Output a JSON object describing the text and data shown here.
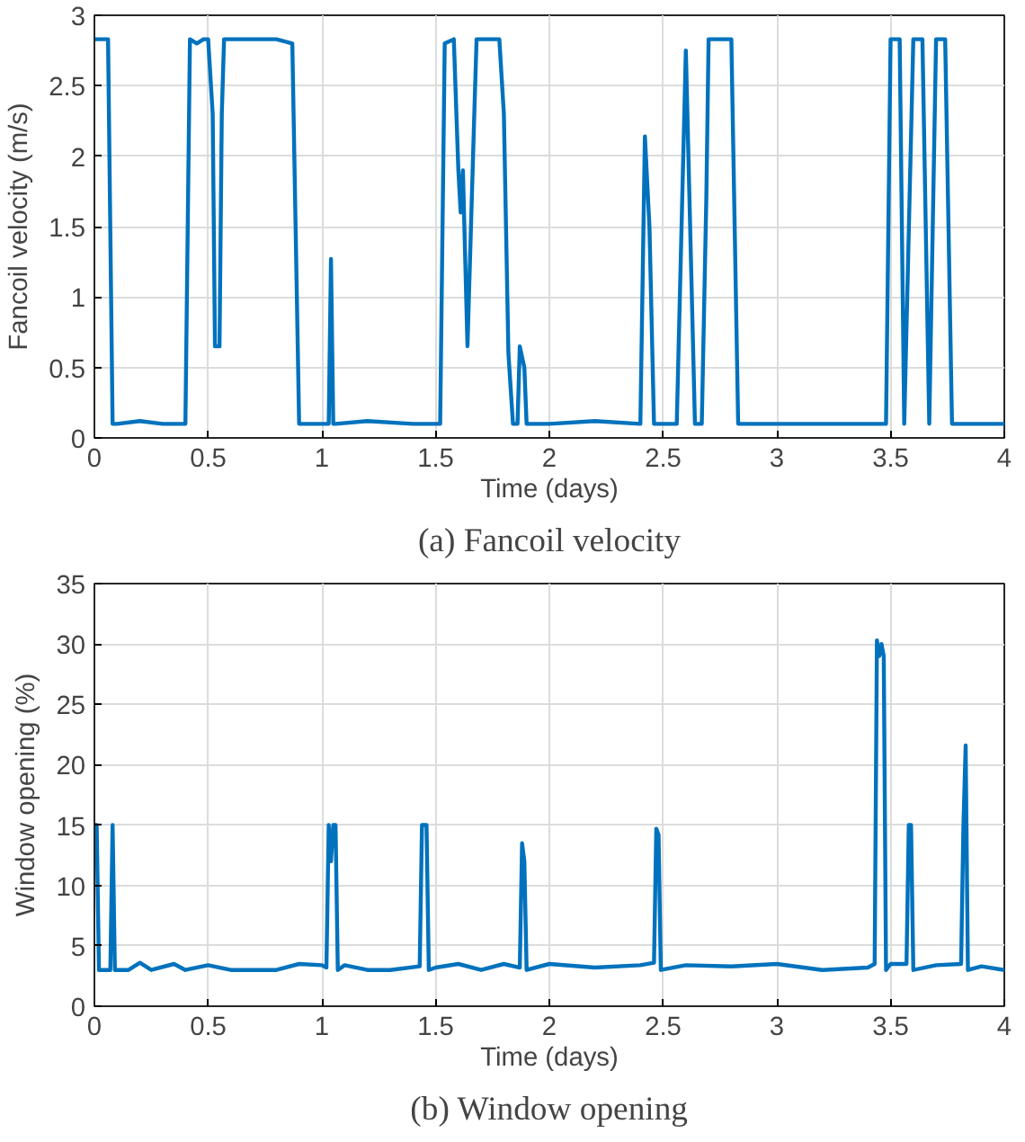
{
  "chart_data": [
    {
      "type": "line",
      "xlabel": "Time (days)",
      "ylabel": "Fancoil velocity (m/s)",
      "annotations": [
        "(a) Fancoil velocity"
      ],
      "xlim": [
        0,
        4
      ],
      "ylim": [
        0,
        3
      ],
      "xticks": [
        0,
        0.5,
        1,
        1.5,
        2,
        2.5,
        3,
        3.5,
        4
      ],
      "yticks": [
        0,
        0.5,
        1,
        1.5,
        2,
        2.5,
        3
      ],
      "grid": true,
      "line_style": "solid",
      "marker": "none",
      "series": [
        {
          "color": "#0072bd",
          "x": [
            0,
            0.06,
            0.08,
            0.1,
            0.2,
            0.3,
            0.4,
            0.42,
            0.45,
            0.48,
            0.5,
            0.52,
            0.53,
            0.55,
            0.56,
            0.57,
            0.6,
            0.7,
            0.8,
            0.87,
            0.9,
            0.95,
            1.03,
            1.04,
            1.05,
            1.06,
            1.2,
            1.4,
            1.52,
            1.54,
            1.58,
            1.6,
            1.61,
            1.62,
            1.64,
            1.67,
            1.68,
            1.78,
            1.8,
            1.82,
            1.84,
            1.86,
            1.87,
            1.89,
            1.9,
            2.0,
            2.2,
            2.4,
            2.42,
            2.44,
            2.46,
            2.56,
            2.6,
            2.64,
            2.67,
            2.69,
            2.7,
            2.8,
            2.83,
            3.0,
            3.3,
            3.48,
            3.5,
            3.54,
            3.56,
            3.6,
            3.64,
            3.67,
            3.7,
            3.74,
            3.77,
            3.9,
            4
          ],
          "values": [
            2.83,
            2.83,
            0.1,
            0.1,
            0.12,
            0.1,
            0.1,
            2.83,
            2.8,
            2.83,
            2.83,
            2.3,
            0.65,
            0.65,
            2.3,
            2.83,
            2.83,
            2.83,
            2.83,
            2.8,
            0.1,
            0.1,
            0.1,
            1.27,
            0.1,
            0.1,
            0.12,
            0.1,
            0.1,
            2.8,
            2.83,
            1.9,
            1.6,
            1.9,
            0.65,
            2.3,
            2.83,
            2.83,
            2.3,
            0.6,
            0.1,
            0.1,
            0.65,
            0.5,
            0.1,
            0.1,
            0.12,
            0.1,
            2.14,
            1.5,
            0.1,
            0.1,
            2.75,
            0.1,
            0.1,
            1.7,
            2.83,
            2.83,
            0.1,
            0.1,
            0.1,
            0.1,
            2.83,
            2.83,
            0.1,
            2.83,
            2.83,
            0.1,
            2.83,
            2.83,
            0.1,
            0.1,
            0.1
          ]
        }
      ]
    },
    {
      "type": "line",
      "xlabel": "Time (days)",
      "ylabel": "Window opening (%)",
      "annotations": [
        "(b) Window opening"
      ],
      "xlim": [
        0,
        4
      ],
      "ylim": [
        0,
        35
      ],
      "xticks": [
        0,
        0.5,
        1,
        1.5,
        2,
        2.5,
        3,
        3.5,
        4
      ],
      "yticks": [
        0,
        5,
        10,
        15,
        20,
        25,
        30,
        35
      ],
      "grid": true,
      "line_style": "solid",
      "marker": "none",
      "series": [
        {
          "color": "#0072bd",
          "x": [
            0,
            0.01,
            0.02,
            0.07,
            0.08,
            0.09,
            0.15,
            0.2,
            0.25,
            0.35,
            0.4,
            0.5,
            0.6,
            0.8,
            0.9,
            1.0,
            1.02,
            1.03,
            1.04,
            1.05,
            1.06,
            1.07,
            1.1,
            1.2,
            1.3,
            1.43,
            1.44,
            1.46,
            1.47,
            1.5,
            1.6,
            1.7,
            1.8,
            1.87,
            1.88,
            1.89,
            1.9,
            2.0,
            2.2,
            2.4,
            2.46,
            2.47,
            2.48,
            2.49,
            2.6,
            2.8,
            3.0,
            3.2,
            3.4,
            3.43,
            3.44,
            3.45,
            3.46,
            3.47,
            3.48,
            3.5,
            3.57,
            3.58,
            3.59,
            3.6,
            3.7,
            3.81,
            3.82,
            3.83,
            3.84,
            3.9,
            4
          ],
          "values": [
            15,
            15,
            3,
            3,
            15,
            3,
            3,
            3.6,
            3,
            3.5,
            3,
            3.4,
            3,
            3,
            3.5,
            3.4,
            3.2,
            15,
            12,
            15,
            15,
            3,
            3.4,
            3,
            3,
            3.3,
            15,
            15,
            3,
            3.2,
            3.5,
            3,
            3.5,
            3.2,
            13.5,
            12,
            3,
            3.5,
            3.2,
            3.4,
            3.6,
            14.7,
            14.2,
            3,
            3.4,
            3.3,
            3.5,
            3,
            3.2,
            3.5,
            30.3,
            29,
            30,
            29,
            3,
            3.5,
            3.5,
            15,
            15,
            3,
            3.4,
            3.5,
            14.8,
            21.6,
            3,
            3.3,
            3
          ]
        }
      ]
    }
  ]
}
